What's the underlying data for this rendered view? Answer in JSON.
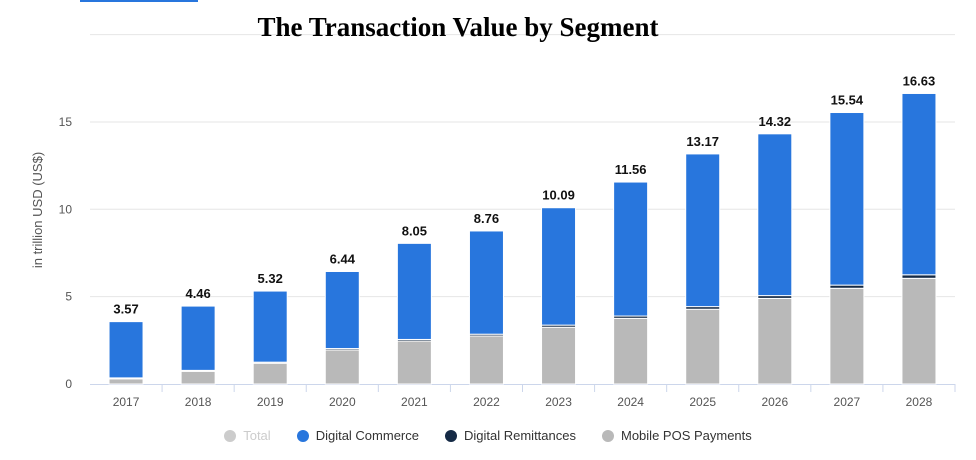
{
  "chart_data": {
    "type": "bar",
    "stacked": true,
    "title": "The Transaction Value by Segment",
    "xlabel": "",
    "ylabel": "in trillion USD (US$)",
    "ylim": [
      0,
      20
    ],
    "yticks": [
      0,
      5,
      10,
      15
    ],
    "grid": true,
    "legend_position": "bottom",
    "categories": [
      "2017",
      "2018",
      "2019",
      "2020",
      "2021",
      "2022",
      "2023",
      "2024",
      "2025",
      "2026",
      "2027",
      "2028"
    ],
    "totals": [
      3.57,
      4.46,
      5.32,
      6.44,
      8.05,
      8.76,
      10.09,
      11.56,
      13.17,
      14.32,
      15.54,
      16.63
    ],
    "series": [
      {
        "name": "Mobile POS Payments",
        "color": "#b9b9b9",
        "values": [
          0.3,
          0.73,
          1.19,
          1.95,
          2.46,
          2.75,
          3.25,
          3.76,
          4.28,
          4.9,
          5.48,
          6.05
        ]
      },
      {
        "name": "Digital Remittances",
        "color": "#152a45",
        "values": [
          0.05,
          0.05,
          0.06,
          0.08,
          0.09,
          0.1,
          0.12,
          0.13,
          0.15,
          0.16,
          0.18,
          0.2
        ]
      },
      {
        "name": "Digital Commerce",
        "color": "#2876dd",
        "values": [
          3.22,
          3.68,
          4.07,
          4.41,
          5.5,
          5.91,
          6.72,
          7.67,
          8.74,
          9.26,
          9.88,
          10.38
        ]
      }
    ],
    "legend": [
      {
        "name": "Total",
        "color": "#cccccc",
        "muted": true
      },
      {
        "name": "Digital Commerce",
        "color": "#2876dd"
      },
      {
        "name": "Digital Remittances",
        "color": "#152a45"
      },
      {
        "name": "Mobile POS Payments",
        "color": "#b9b9b9"
      }
    ]
  }
}
